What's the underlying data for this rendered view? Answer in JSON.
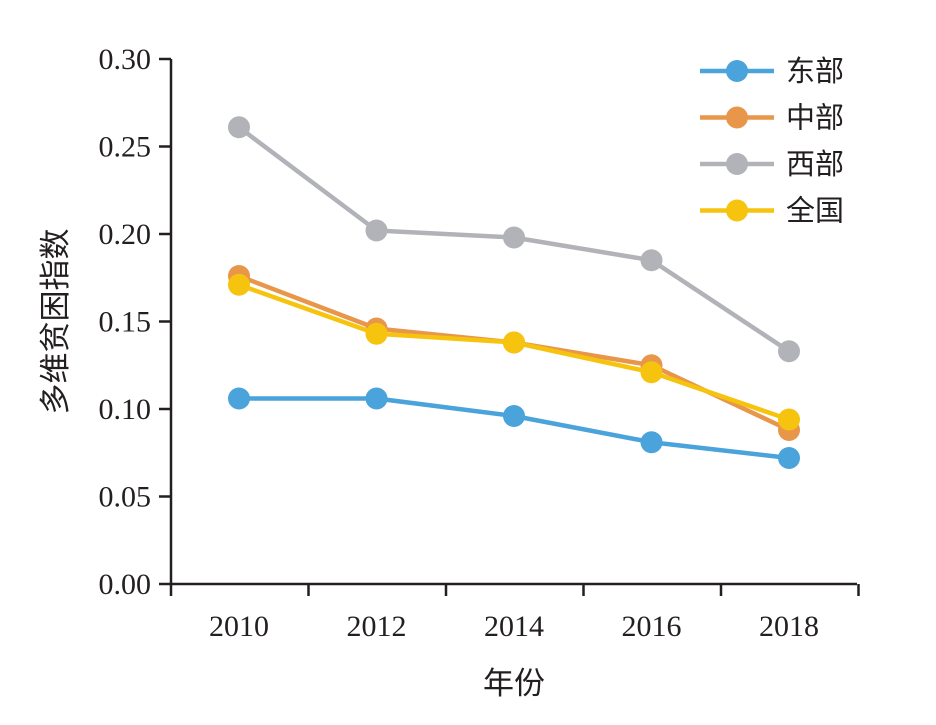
{
  "chart_data": {
    "type": "line",
    "title": "",
    "xlabel": "年份",
    "ylabel": "多维贫困指数",
    "categories": [
      "2010",
      "2012",
      "2014",
      "2016",
      "2018"
    ],
    "yticks": [
      "0.00",
      "0.05",
      "0.10",
      "0.15",
      "0.20",
      "0.25",
      "0.30"
    ],
    "ylim": [
      0,
      0.3
    ],
    "grid": false,
    "legend_position": "top-right",
    "series": [
      {
        "name": "东部",
        "color": "#4aa3db",
        "values": [
          0.106,
          0.106,
          0.096,
          0.081,
          0.072
        ]
      },
      {
        "name": "中部",
        "color": "#e8964a",
        "values": [
          0.176,
          0.146,
          0.138,
          0.125,
          0.088
        ]
      },
      {
        "name": "西部",
        "color": "#b1b3b8",
        "values": [
          0.261,
          0.202,
          0.198,
          0.185,
          0.133
        ]
      },
      {
        "name": "全国",
        "color": "#f6c40f",
        "values": [
          0.171,
          0.143,
          0.138,
          0.121,
          0.094
        ]
      }
    ],
    "draw_order": [
      2,
      1,
      3,
      0
    ]
  }
}
